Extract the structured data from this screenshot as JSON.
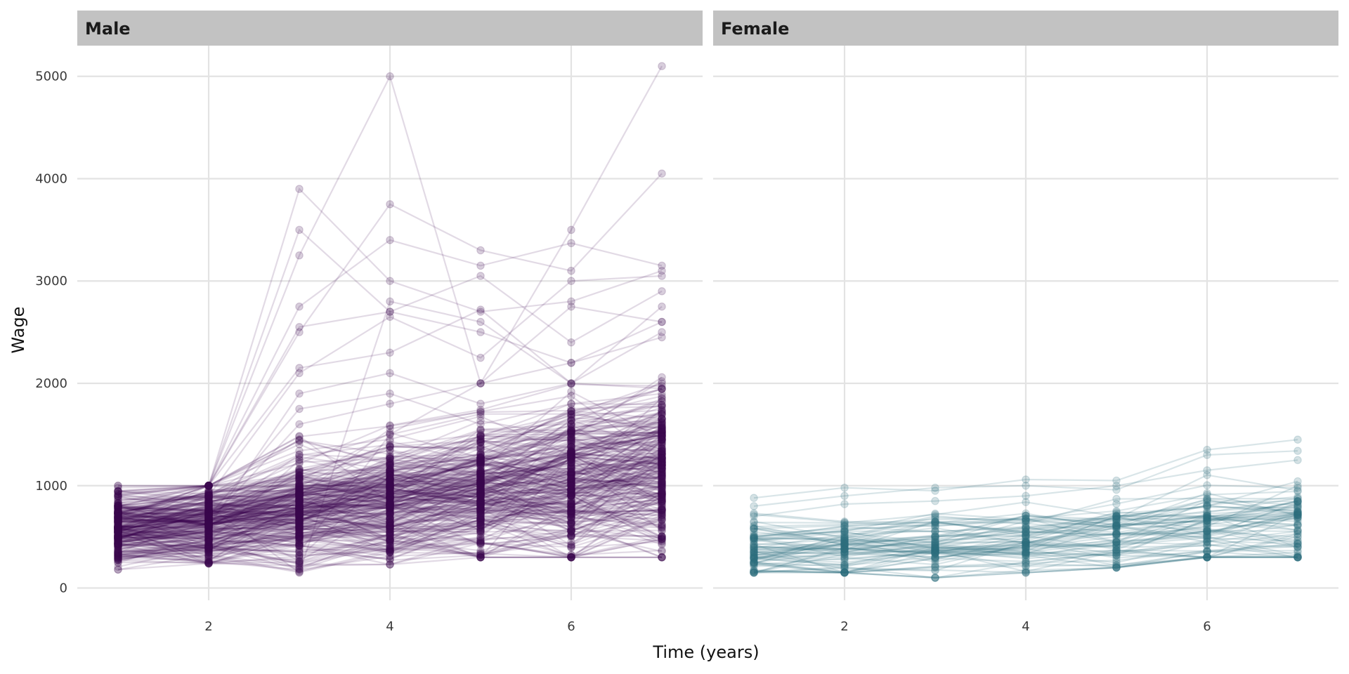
{
  "chart_data": {
    "type": "line",
    "xlabel": "Time (years)",
    "ylabel": "Wage",
    "xlim": [
      0.55,
      7.45
    ],
    "ylim": [
      -120,
      5300
    ],
    "x_ticks": [
      2,
      4,
      6
    ],
    "y_ticks": [
      0,
      1000,
      2000,
      3000,
      4000,
      5000
    ],
    "grid": true,
    "legend": "none",
    "panels": [
      {
        "name": "Male",
        "color": "#3d0a4e",
        "line_opacity": 0.15,
        "point_opacity": 0.2,
        "series_count_estimate": 520,
        "trend_mean": [
          600,
          650,
          760,
          860,
          960,
          1050,
          1150
        ],
        "notable_values": {
          "x": [
            1,
            2,
            3,
            4,
            5,
            6,
            7
          ],
          "max": [
            1000,
            1000,
            3900,
            5000,
            3300,
            3500,
            5100
          ],
          "min": [
            180,
            240,
            150,
            230,
            300,
            300,
            300
          ]
        },
        "series": [
          {
            "values": [
              1000,
              1000,
              3900,
              3000,
              2700,
              2800,
              3100
            ]
          },
          {
            "values": [
              950,
              1000,
              3500,
              2700,
              2500,
              2200,
              2600
            ]
          },
          {
            "values": [
              1000,
              1000,
              3250,
              5000,
              2000,
              3500,
              5100
            ]
          },
          {
            "values": [
              800,
              1000,
              2500,
              3750,
              3300,
              3100,
              4050
            ]
          },
          {
            "values": [
              900,
              1000,
              2750,
              3400,
              3150,
              3370,
              3150
            ]
          },
          {
            "values": [
              700,
              1000,
              2550,
              2700,
              3050,
              2400,
              2900
            ]
          },
          {
            "values": [
              600,
              900,
              2100,
              2650,
              2250,
              3000,
              3050
            ]
          },
          {
            "values": [
              550,
              800,
              150,
              2800,
              2600,
              2000,
              2750
            ]
          },
          {
            "values": [
              980,
              1000,
              2150,
              2300,
              2720,
              2000,
              2500
            ]
          },
          {
            "values": [
              300,
              400,
              350,
              1500,
              2000,
              2750,
              2600
            ]
          },
          {
            "values": [
              500,
              650,
              1600,
              1800,
              2000,
              2200,
              2450
            ]
          },
          {
            "values": [
              450,
              600,
              1900,
              2100,
              1800,
              2000,
              1950
            ]
          },
          {
            "values": [
              350,
              450,
              1250,
              1500,
              1700,
              1700,
              2000
            ]
          },
          {
            "values": [
              650,
              700,
              1750,
              1900,
              1600,
              1800,
              1900
            ]
          },
          {
            "values": [
              800,
              900,
              1450,
              1200,
              1300,
              1600,
              1700
            ]
          },
          {
            "values": [
              700,
              700,
              1300,
              1400,
              1500,
              1500,
              1650
            ]
          },
          {
            "values": [
              400,
              500,
              300,
              1100,
              1200,
              1300,
              1500
            ]
          },
          {
            "values": [
              300,
              350,
              1000,
              900,
              1500,
              1700,
              1550
            ]
          },
          {
            "values": [
              250,
              250,
              700,
              850,
              900,
              1000,
              1100
            ]
          },
          {
            "values": [
              600,
              800,
              900,
              1000,
              1100,
              1400,
              1200
            ]
          }
        ]
      },
      {
        "name": "Female",
        "color": "#2f6f7d",
        "line_opacity": 0.18,
        "point_opacity": 0.2,
        "series_count_estimate": 70,
        "trend_mean": [
          400,
          410,
          440,
          470,
          520,
          590,
          660
        ],
        "notable_values": {
          "x": [
            1,
            2,
            3,
            4,
            5,
            6,
            7
          ],
          "max": [
            880,
            980,
            980,
            1060,
            1050,
            1350,
            1450
          ],
          "min": [
            150,
            150,
            100,
            150,
            200,
            300,
            300
          ]
        },
        "series": [
          {
            "values": [
              880,
              980,
              950,
              1060,
              1050,
              1350,
              1450
            ]
          },
          {
            "values": [
              800,
              900,
              980,
              1000,
              960,
              1300,
              1340
            ]
          },
          {
            "values": [
              700,
              820,
              850,
              900,
              1000,
              1150,
              1250
            ]
          },
          {
            "values": [
              150,
              150,
              100,
              150,
              200,
              300,
              350
            ]
          },
          {
            "values": [
              250,
              350,
              300,
              400,
              500,
              600,
              1000
            ]
          },
          {
            "values": [
              380,
              380,
              450,
              550,
              700,
              800,
              750
            ]
          },
          {
            "values": [
              500,
              600,
              550,
              600,
              650,
              750,
              800
            ]
          },
          {
            "values": [
              300,
              250,
              350,
              300,
              450,
              500,
              320
            ]
          }
        ]
      }
    ]
  }
}
